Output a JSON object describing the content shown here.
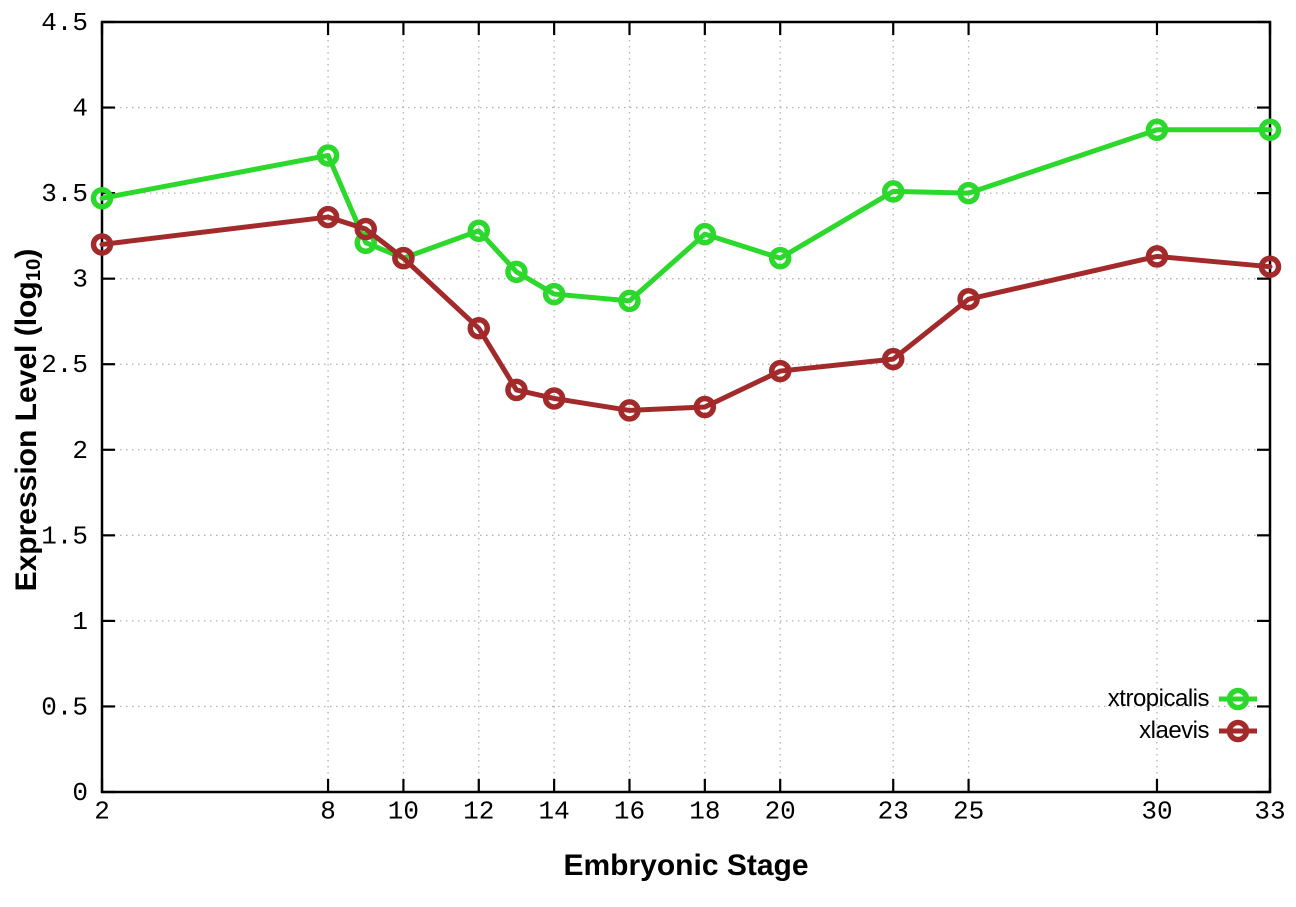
{
  "figure": {
    "background": "#ffffff",
    "axis_color": "#000000",
    "grid_color": "#b3b3b3"
  },
  "chart_data": {
    "type": "line",
    "title": "",
    "xlabel": "Embryonic Stage",
    "ylabel": "Expression Level (log10)",
    "ylabel_rich": {
      "prefix": "Expression Level (log",
      "subscript": "10",
      "suffix": ")"
    },
    "xlim": [
      2,
      33
    ],
    "ylim": [
      0,
      4.5
    ],
    "x_ticks": [
      2,
      8,
      10,
      12,
      14,
      16,
      18,
      20,
      23,
      25,
      30,
      33
    ],
    "y_ticks": [
      0,
      0.5,
      1,
      1.5,
      2,
      2.5,
      3,
      3.5,
      4,
      4.5
    ],
    "grid": "dotted",
    "legend_position": "inside-bottom-right",
    "x": [
      2,
      8,
      9,
      10,
      12,
      13,
      14,
      16,
      18,
      20,
      23,
      25,
      30,
      33
    ],
    "series": [
      {
        "name": "xtropicalis",
        "color": "#2bd82b",
        "marker": "open-circle",
        "values": [
          3.47,
          3.72,
          3.21,
          3.12,
          3.28,
          3.04,
          2.91,
          2.87,
          3.26,
          3.12,
          3.51,
          3.5,
          3.87,
          3.87
        ]
      },
      {
        "name": "xlaevis",
        "color": "#a32a2a",
        "marker": "open-circle",
        "values": [
          3.2,
          3.36,
          3.29,
          3.12,
          2.71,
          2.35,
          2.3,
          2.23,
          2.25,
          2.46,
          2.53,
          2.88,
          3.13,
          3.07
        ]
      }
    ]
  }
}
